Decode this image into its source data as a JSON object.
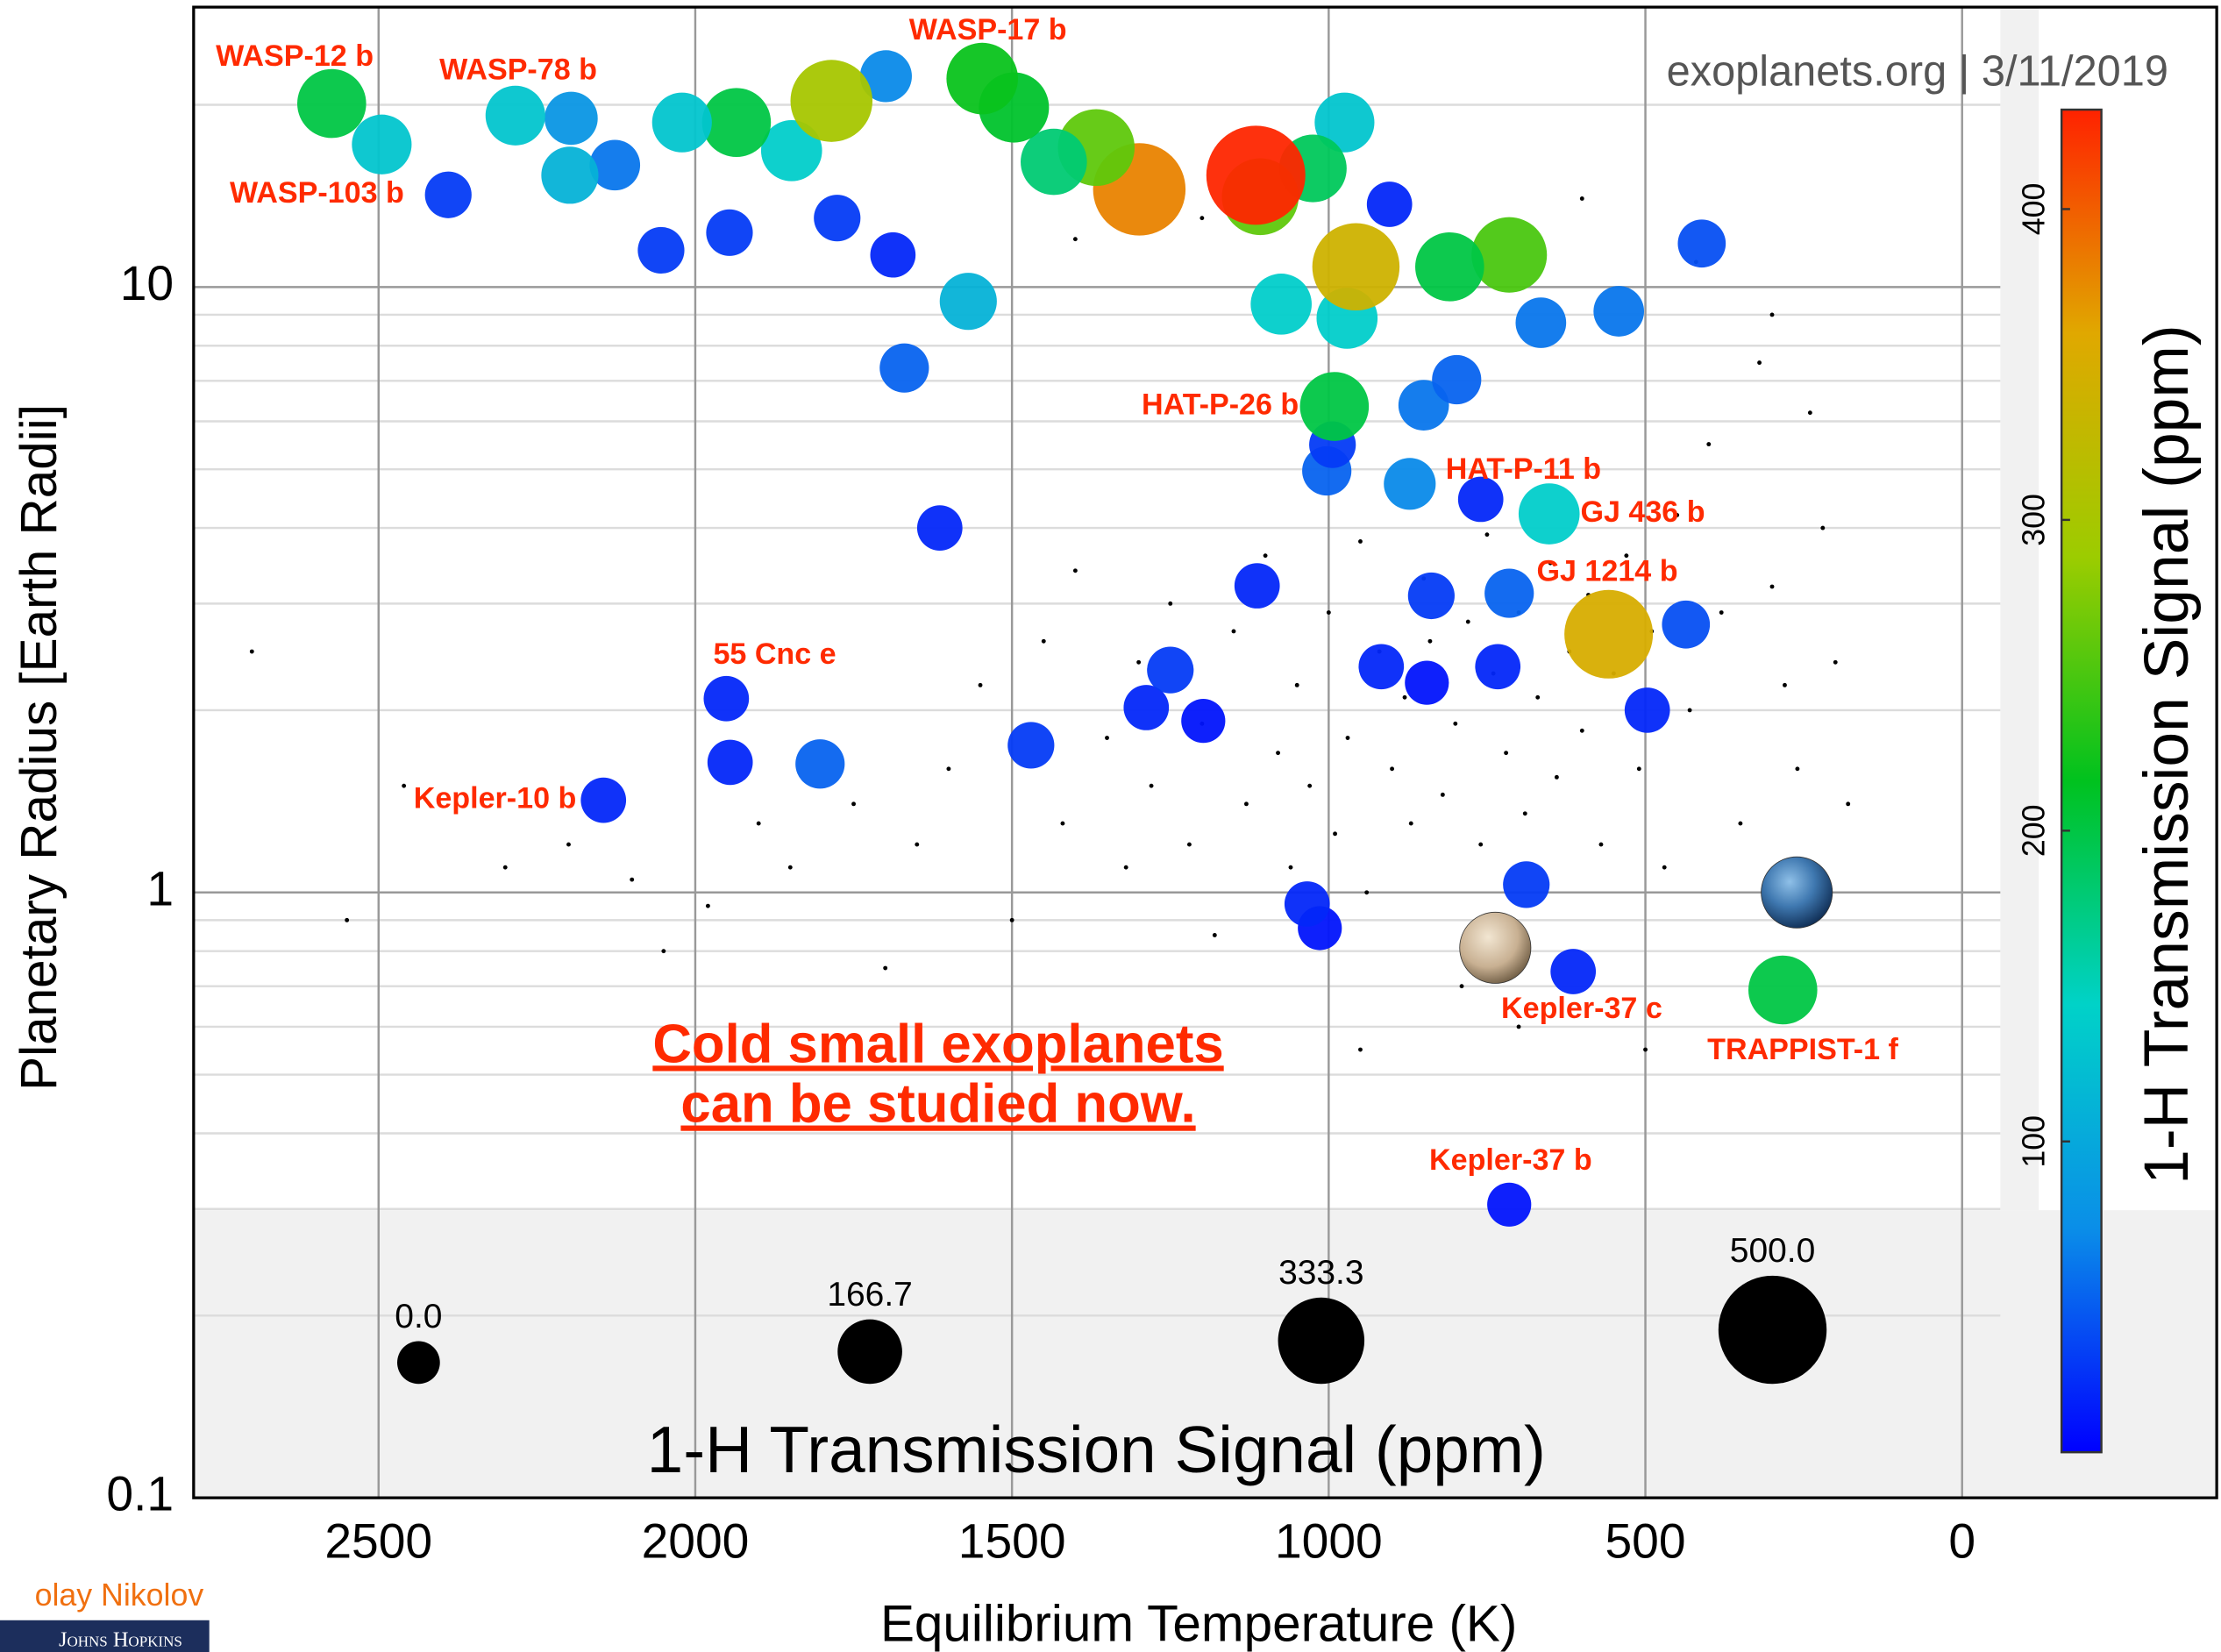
{
  "chart_data": {
    "type": "bubble",
    "x_label": "Equilibrium Temperature (K)",
    "y_label": "Planetary Radius [Earth Radii]",
    "xlim": [
      2792,
      -402
    ],
    "xticks": [
      2500,
      2000,
      1500,
      1000,
      500,
      0
    ],
    "ylim": [
      0.1,
      29
    ],
    "log_y": true,
    "yticks": [
      0.1,
      1,
      10
    ],
    "yminor_ticks": [
      0.2,
      0.3,
      0.4,
      0.5,
      0.6,
      0.7,
      0.8,
      0.9,
      2,
      3,
      4,
      5,
      6,
      7,
      8,
      9,
      20
    ],
    "grid": true,
    "credit": "exoplanets.org  |  3/11/2019",
    "annotation": [
      "Cold small exoplanets",
      "can be studied now."
    ],
    "colorbar": {
      "label": "1-H Transmission Signal (ppm)",
      "clim": [
        0,
        432
      ],
      "ticks": [
        100,
        200,
        300,
        400
      ],
      "colormap": [
        "#0000ff",
        "#0a8ee8",
        "#00d2c8",
        "#00c21e",
        "#9ccc00",
        "#e0a800",
        "#ff2200"
      ]
    },
    "size_legend": {
      "title": "1-H Transmission Signal (ppm)",
      "values": [
        {
          "value": 0,
          "label": "0.0"
        },
        {
          "value": 166.7,
          "label": "166.7"
        },
        {
          "value": 333.3,
          "label": "333.3"
        },
        {
          "value": 500,
          "label": "500.0"
        }
      ]
    },
    "planets": {
      "names": [
        "WASP-12 b",
        "WASP-78 b",
        "WASP-103 b",
        "WASP-17 b",
        "HAT-P-26 b",
        "HAT-P-11 b",
        "GJ 436 b",
        "GJ 1214 b",
        "55 Cnc e",
        "Kepler-10 b",
        "Kepler-37 c",
        "TRAPPIST-1 f",
        "Kepler-37 b",
        null,
        null,
        null,
        null,
        null,
        null,
        null,
        null,
        null,
        null,
        null,
        null,
        null,
        null,
        null,
        null,
        null,
        null,
        null,
        null,
        null,
        null,
        null,
        null,
        null,
        null,
        null,
        null,
        null,
        null,
        null,
        null,
        null,
        null,
        null,
        null,
        null,
        null,
        null,
        null,
        null,
        null,
        null,
        null,
        null,
        null,
        null,
        null,
        null,
        null,
        null,
        null,
        null,
        null,
        null
      ],
      "x": [
        2574,
        2284,
        2390,
        1547,
        991,
        760,
        652,
        558,
        1951,
        2145,
        614,
        283,
        715,
        2495,
        2196,
        2198,
        2127,
        2021,
        1935,
        1785,
        1699,
        2054,
        1946,
        1848,
        1776,
        1688,
        1569,
        1670,
        1614,
        1497,
        1434,
        1367,
        1299,
        1115,
        1108,
        1025,
        975,
        957,
        971,
        1075,
        904,
        809,
        715,
        665,
        542,
        411,
        798,
        850,
        994,
        1003,
        872,
        1113,
        838,
        715,
        436,
        917,
        845,
        733,
        497,
        1250,
        1288,
        1198,
        1470,
        1945,
        1803,
        1034,
        1014,
        688
      ],
      "y": [
        20.1,
        19.2,
        14.2,
        22.1,
        6.35,
        4.46,
        4.22,
        2.67,
        2.09,
        1.42,
        0.74,
        0.69,
        0.305,
        17.2,
        19.0,
        15.3,
        15.9,
        18.7,
        18.7,
        20.3,
        22.3,
        11.5,
        12.3,
        16.8,
        13.0,
        11.3,
        9.47,
        7.35,
        4.0,
        19.8,
        16.1,
        17.0,
        14.5,
        15.3,
        14.1,
        15.7,
        18.7,
        10.8,
        8.88,
        9.37,
        13.7,
        10.8,
        11.3,
        8.73,
        9.12,
        11.8,
        7.03,
        6.38,
        5.49,
        4.97,
        4.73,
        3.21,
        3.09,
        3.12,
        2.77,
        2.36,
        2.22,
        2.36,
        2.0,
        2.33,
        2.02,
        1.92,
        1.75,
        1.64,
        1.63,
        0.957,
        0.873,
        1.03
      ],
      "signal": [
        200,
        130,
        30,
        220,
        200,
        20,
        140,
        350,
        20,
        20,
        20,
        200,
        10,
        130,
        80,
        110,
        60,
        130,
        200,
        300,
        70,
        30,
        30,
        140,
        30,
        20,
        110,
        50,
        20,
        210,
        180,
        260,
        380,
        430,
        260,
        190,
        130,
        340,
        140,
        140,
        20,
        200,
        250,
        60,
        60,
        40,
        50,
        60,
        30,
        50,
        70,
        20,
        30,
        50,
        40,
        20,
        10,
        20,
        20,
        30,
        20,
        10,
        30,
        20,
        50,
        20,
        10,
        30
      ]
    },
    "other_planets": {
      "x": [
        2700,
        2550,
        2460,
        2300,
        2200,
        2100,
        2050,
        1980,
        1900,
        1850,
        1750,
        1700,
        1650,
        1600,
        1550,
        1500,
        1450,
        1420,
        1400,
        1350,
        1320,
        1300,
        1280,
        1250,
        1220,
        1200,
        1180,
        1150,
        1130,
        1100,
        1080,
        1060,
        1050,
        1030,
        1000,
        990,
        970,
        950,
        940,
        920,
        900,
        880,
        870,
        850,
        840,
        820,
        800,
        790,
        780,
        760,
        750,
        740,
        720,
        700,
        690,
        670,
        650,
        640,
        620,
        600,
        590,
        570,
        550,
        530,
        510,
        490,
        470,
        450,
        430,
        400,
        380,
        350,
        320,
        300,
        280,
        260,
        240,
        220,
        200,
        180,
        950,
        700,
        500,
        1400,
        1200,
        420,
        300,
        600
      ],
      "y": [
        2.5,
        0.9,
        1.5,
        1.1,
        1.2,
        1.05,
        0.8,
        0.95,
        1.3,
        1.1,
        1.4,
        0.75,
        1.2,
        1.6,
        2.2,
        0.9,
        2.6,
        1.3,
        3.4,
        1.8,
        1.1,
        2.4,
        1.5,
        3.0,
        1.2,
        1.9,
        0.85,
        2.7,
        1.4,
        3.6,
        1.7,
        1.1,
        2.2,
        1.5,
        2.9,
        1.25,
        1.8,
        3.8,
        1.0,
        2.5,
        1.6,
        2.1,
        1.3,
        3.3,
        2.6,
        1.45,
        1.9,
        0.7,
        2.8,
        1.2,
        3.9,
        2.3,
        1.7,
        2.9,
        1.35,
        2.1,
        3.5,
        1.55,
        2.5,
        1.85,
        3.1,
        1.2,
        2.3,
        3.6,
        1.6,
        2.7,
        1.1,
        4.2,
        2.0,
        5.5,
        2.9,
        1.3,
        7.5,
        3.2,
        2.2,
        1.6,
        6.2,
        4.0,
        2.4,
        1.4,
        0.55,
        0.6,
        0.55,
        12,
        13,
        11,
        9,
        14
      ]
    },
    "reference_planets": {
      "x": [
        261,
        737
      ],
      "y": [
        1.0,
        0.81
      ]
    },
    "author": "olay Nikolov",
    "affiliation": "Johns Hopkins"
  }
}
